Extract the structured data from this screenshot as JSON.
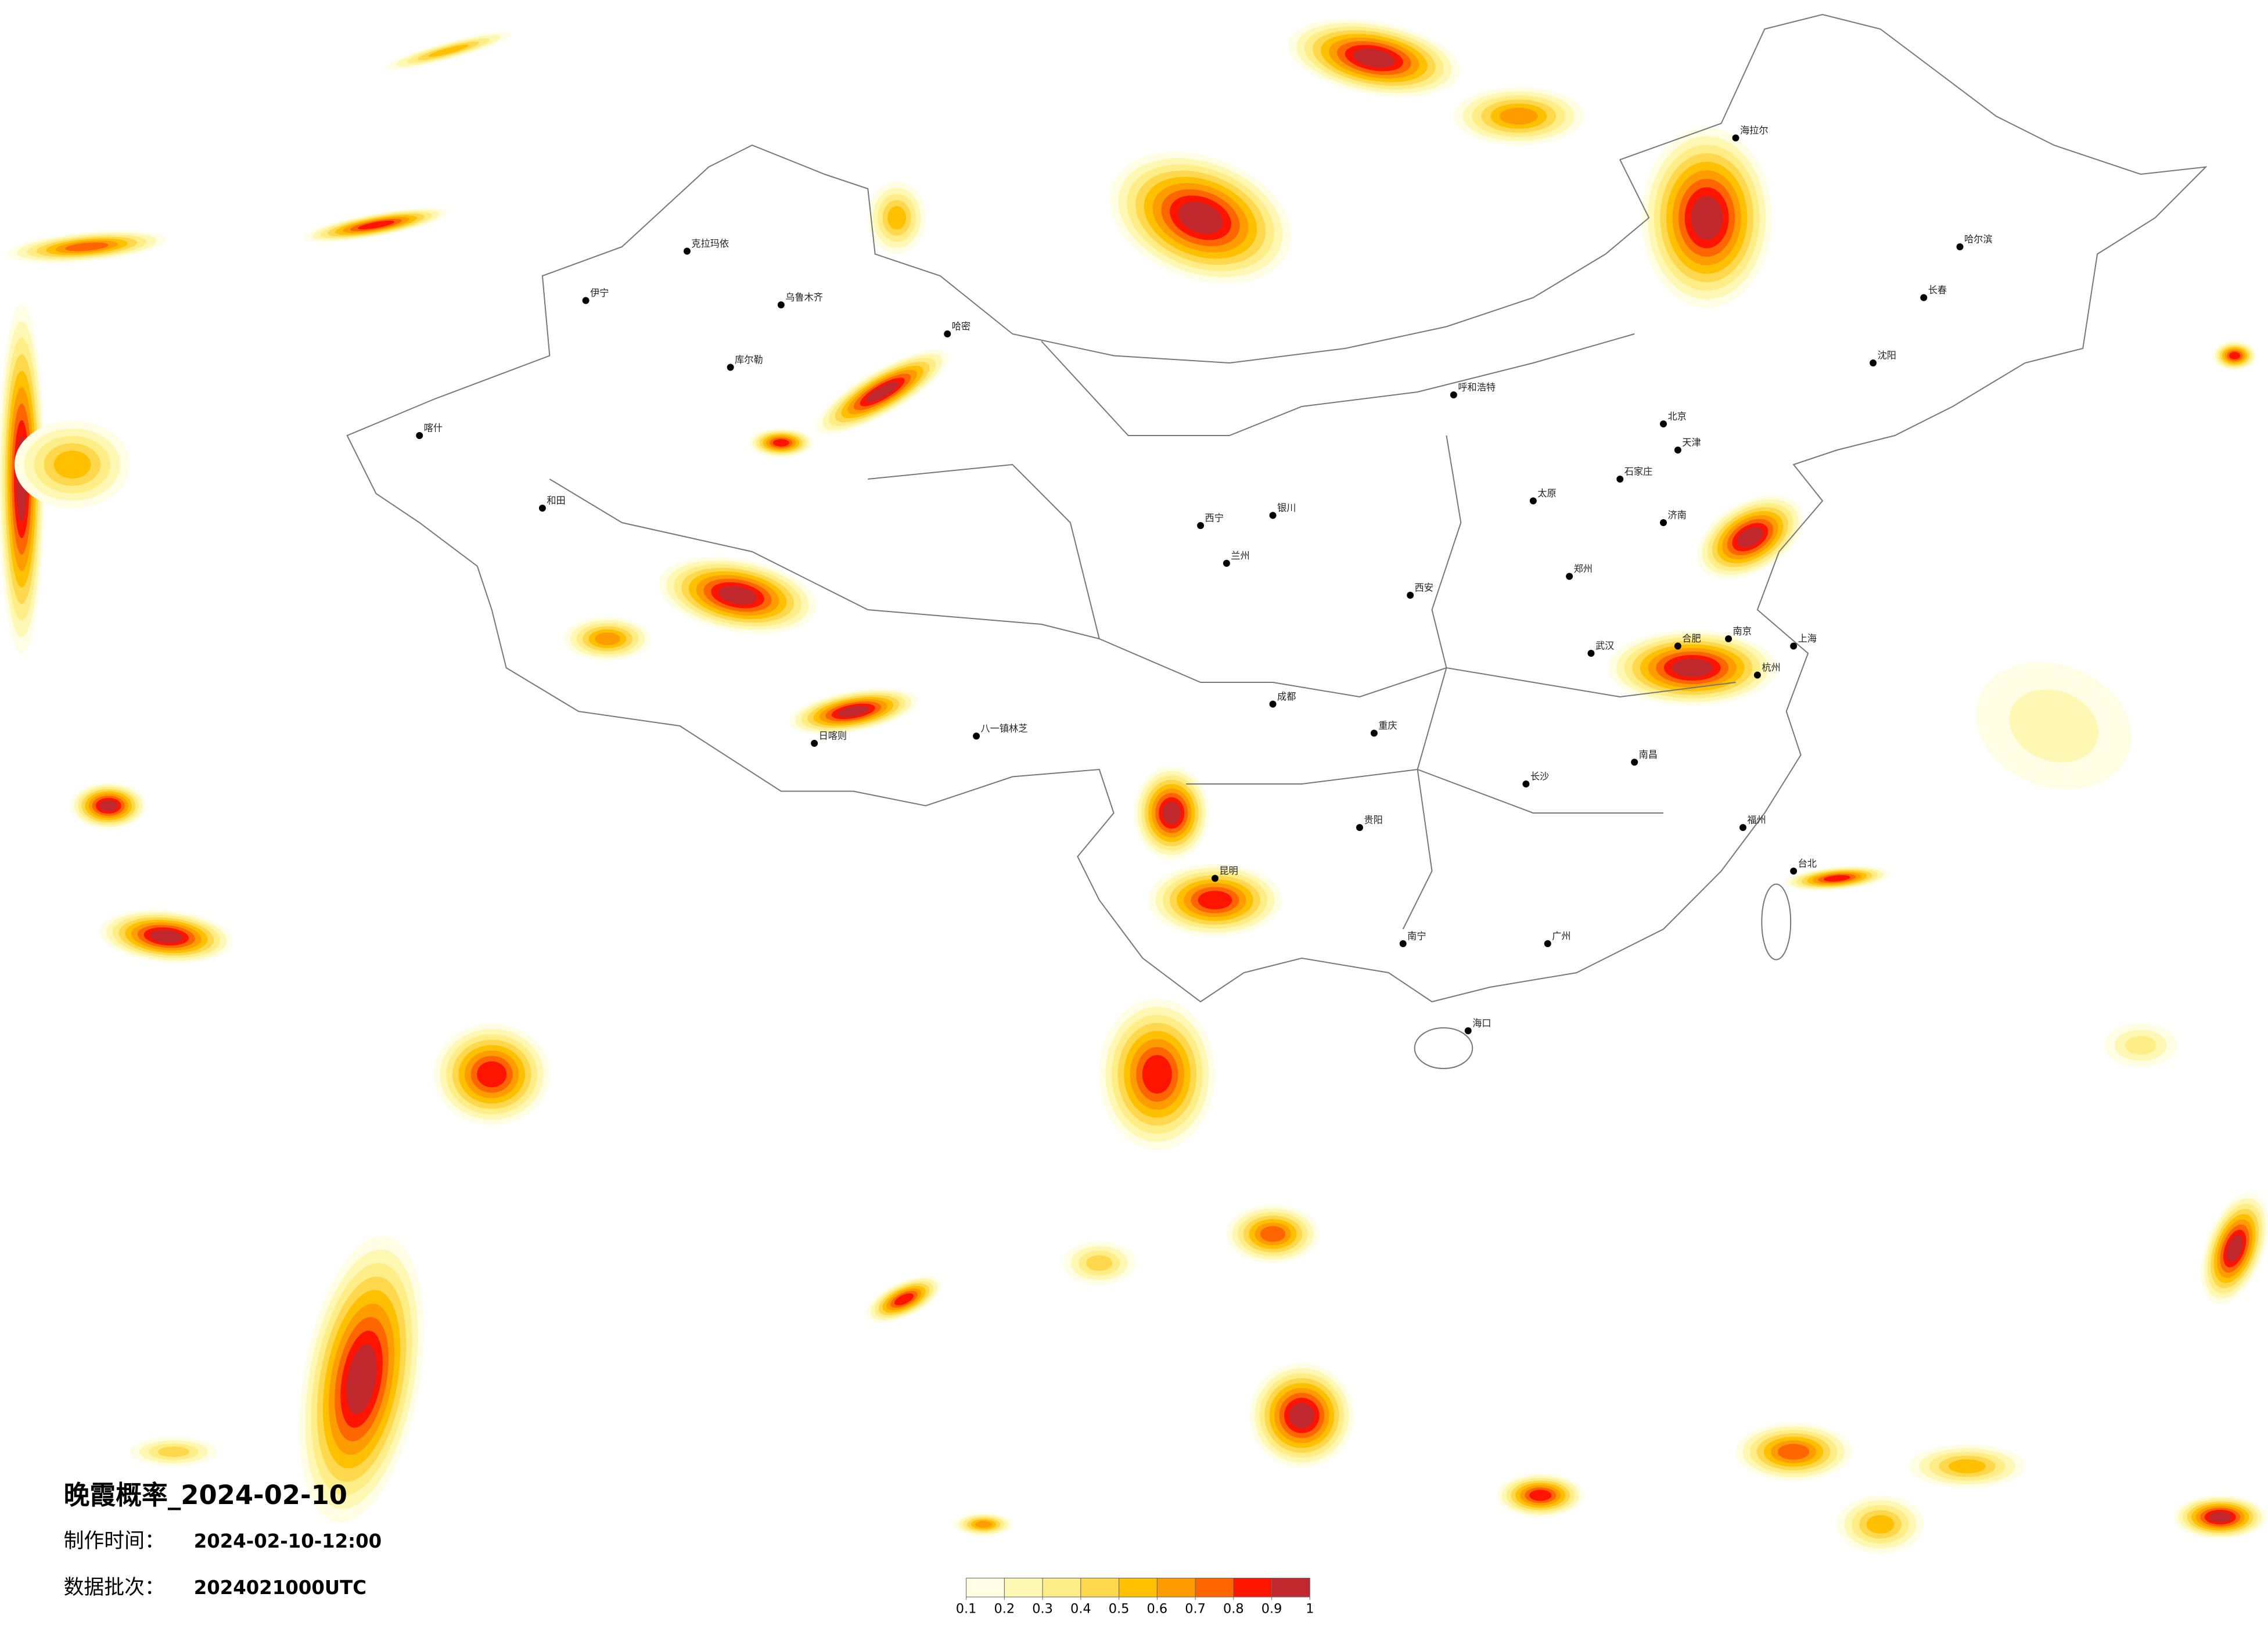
{
  "title": "晚霞概率_2024-02-10",
  "info": [
    {
      "label": "制作时间：",
      "value": "2024-02-10-12:00"
    },
    {
      "label": "数据批次：",
      "value": "2024021000UTC"
    }
  ],
  "legend": {
    "ticks": [
      0.1,
      0.2,
      0.3,
      0.4,
      0.5,
      0.6,
      0.7,
      0.8,
      0.9,
      1
    ],
    "colors": [
      "#fffde4",
      "#fff7b4",
      "#ffee88",
      "#ffd84e",
      "#ffc000",
      "#ff9c00",
      "#ff6600",
      "#ff1400",
      "#c0282d"
    ]
  },
  "cities": [
    "乌鲁木齐",
    "哈密",
    "伊宁",
    "克拉玛依",
    "库尔勒",
    "喀什",
    "和田",
    "日喀则",
    "八一镇林芝",
    "西宁",
    "兰州",
    "银川",
    "呼和浩特",
    "北京",
    "天津",
    "石家庄",
    "太原",
    "济南",
    "郑州",
    "西安",
    "成都",
    "重庆",
    "武汉",
    "长沙",
    "南昌",
    "合肥",
    "南京",
    "上海",
    "杭州",
    "福州",
    "广州",
    "南宁",
    "昆明",
    "贵阳",
    "海口",
    "台北",
    "哈尔滨",
    "长春",
    "沈阳",
    "海拉尔"
  ]
}
